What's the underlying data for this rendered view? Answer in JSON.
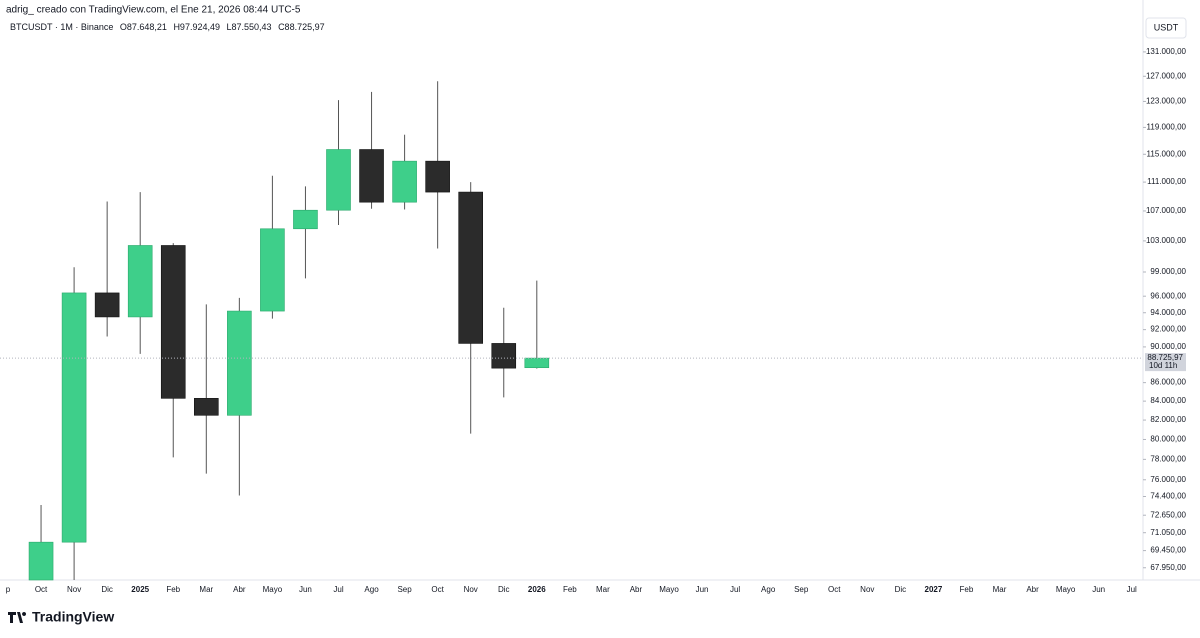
{
  "header": {
    "caption": "adrig_ creado con TradingView.com, el Ene 21, 2026 08:44 UTC-5",
    "brand": "TradingView",
    "currency": "USDT"
  },
  "chart_data": {
    "type": "candlestick",
    "title": "BTCUSDT · 1M · Binance",
    "ohlc_legend": [
      "O87.648,21",
      "H97.924,49",
      "L87.550,43",
      "C88.725,97"
    ],
    "categories": [
      "p",
      "Oct",
      "Nov",
      "Dic",
      "2025",
      "Feb",
      "Mar",
      "Abr",
      "Mayo",
      "Jun",
      "Jul",
      "Ago",
      "Sep",
      "Oct",
      "Nov",
      "Dic",
      "2026",
      "Feb",
      "Mar",
      "Abr",
      "Mayo",
      "Jun",
      "Jul",
      "Ago",
      "Sep",
      "Oct",
      "Nov",
      "Dic",
      "2027",
      "Feb",
      "Mar",
      "Abr",
      "Mayo",
      "Jun",
      "Jul"
    ],
    "open": [
      null,
      63300,
      70200,
      96400,
      93500,
      102400,
      84300,
      82500,
      94200,
      104600,
      107100,
      115700,
      108200,
      114000,
      109600,
      90400,
      87648.21,
      null,
      null,
      null,
      null,
      null,
      null,
      null,
      null,
      null,
      null,
      null,
      null,
      null,
      null,
      null,
      null,
      null,
      null
    ],
    "high": [
      null,
      73600,
      99600,
      108300,
      109600,
      102700,
      95000,
      95800,
      111900,
      110400,
      123200,
      124500,
      117900,
      126200,
      111000,
      94600,
      97924.49,
      null,
      null,
      null,
      null,
      null,
      null,
      null,
      null,
      null,
      null,
      null,
      null,
      null,
      null,
      null,
      null,
      null,
      null
    ],
    "low": [
      null,
      58900,
      66800,
      91200,
      89200,
      78200,
      76600,
      74500,
      93300,
      98200,
      105100,
      107300,
      107200,
      102000,
      80600,
      84400,
      87550.43,
      null,
      null,
      null,
      null,
      null,
      null,
      null,
      null,
      null,
      null,
      null,
      null,
      null,
      null,
      null,
      null,
      null,
      null
    ],
    "close": [
      null,
      70200,
      96400,
      93500,
      102400,
      84300,
      82500,
      94200,
      104600,
      107100,
      115700,
      108200,
      114000,
      109600,
      90400,
      87600,
      88725.97,
      null,
      null,
      null,
      null,
      null,
      null,
      null,
      null,
      null,
      null,
      null,
      null,
      null,
      null,
      null,
      null,
      null,
      null
    ],
    "up_color": "#3ecf8a",
    "down_color": "#2b2b2b",
    "log_scale": true,
    "grid": false,
    "ylim": [
      66900,
      137300
    ],
    "yticks": [
      {
        "value": 131000,
        "label": "131.000,00"
      },
      {
        "value": 127000,
        "label": "127.000,00"
      },
      {
        "value": 123000,
        "label": "123.000,00"
      },
      {
        "value": 119000,
        "label": "119.000,00"
      },
      {
        "value": 115000,
        "label": "115.000,00"
      },
      {
        "value": 111000,
        "label": "111.000,00"
      },
      {
        "value": 107000,
        "label": "107.000,00"
      },
      {
        "value": 103000,
        "label": "103.000,00"
      },
      {
        "value": 99000,
        "label": "99.000,00"
      },
      {
        "value": 96000,
        "label": "96.000,00"
      },
      {
        "value": 94000,
        "label": "94.000,00"
      },
      {
        "value": 92000,
        "label": "92.000,00"
      },
      {
        "value": 90000,
        "label": "90.000,00"
      },
      {
        "value": 86000,
        "label": "86.000,00"
      },
      {
        "value": 84000,
        "label": "84.000,00"
      },
      {
        "value": 82000,
        "label": "82.000,00"
      },
      {
        "value": 80000,
        "label": "80.000,00"
      },
      {
        "value": 78000,
        "label": "78.000,00"
      },
      {
        "value": 76000,
        "label": "76.000,00"
      },
      {
        "value": 74400,
        "label": "74.400,00"
      },
      {
        "value": 72650,
        "label": "72.650,00"
      },
      {
        "value": 71050,
        "label": "71.050,00"
      },
      {
        "value": 69450,
        "label": "69.450,00"
      },
      {
        "value": 67950,
        "label": "67.950,00"
      }
    ],
    "last_price": {
      "value": 88725.97,
      "label": "88.725,97"
    },
    "countdown": "10d 11h"
  }
}
